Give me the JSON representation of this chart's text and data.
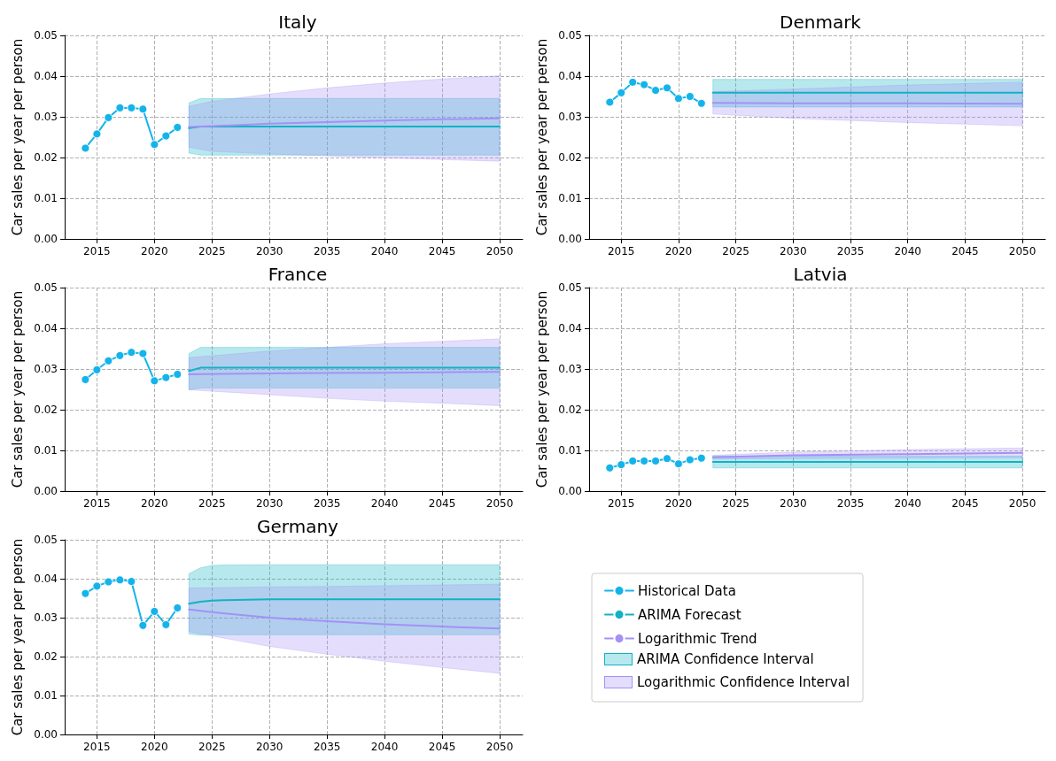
{
  "chart_data": [
    {
      "type": "line",
      "title": "Italy",
      "ylabel": "Car sales per year per person",
      "xlim": [
        2012.2,
        2052
      ],
      "xticks": [
        2015,
        2020,
        2025,
        2030,
        2035,
        2040,
        2045,
        2050
      ],
      "ylim": [
        0,
        0.05
      ],
      "yticks": [
        {
          "value": 0,
          "label": "0.00"
        },
        {
          "value": 0.01,
          "label": "0.01"
        },
        {
          "value": 0.02,
          "label": "0.02"
        },
        {
          "value": 0.03,
          "label": "0.03"
        },
        {
          "value": 0.04,
          "label": "0.04"
        },
        {
          "value": 0.05,
          "label": "0.05"
        }
      ],
      "grid": true,
      "series": [
        {
          "marker": "circle",
          "color": "#14b4eb",
          "x": [
            2014,
            2015,
            2016,
            2017,
            2018,
            2019,
            2020,
            2021,
            2022
          ],
          "values": [
            0.0223,
            0.0258,
            0.0298,
            0.0322,
            0.0322,
            0.0319,
            0.0232,
            0.0253,
            0.0274
          ]
        },
        {
          "marker": "none",
          "color": "#12b2c4",
          "x": [
            2023,
            2024,
            2025,
            2030,
            2035,
            2040,
            2045,
            2050
          ],
          "values": [
            0.0272,
            0.0276,
            0.0276,
            0.0276,
            0.0276,
            0.0276,
            0.0276,
            0.0276
          ],
          "lower": [
            0.0211,
            0.0206,
            0.0206,
            0.0206,
            0.0206,
            0.0206,
            0.0206,
            0.0206
          ],
          "upper": [
            0.0334,
            0.0345,
            0.0345,
            0.0345,
            0.0345,
            0.0345,
            0.0345,
            0.0345
          ]
        },
        {
          "marker": "none",
          "color": "#a591f5",
          "x": [
            2023,
            2025,
            2030,
            2035,
            2040,
            2045,
            2050
          ],
          "values": [
            0.0275,
            0.0277,
            0.0283,
            0.0287,
            0.0291,
            0.0294,
            0.0296
          ],
          "lower": [
            0.0225,
            0.0215,
            0.0209,
            0.0204,
            0.0199,
            0.0195,
            0.0191
          ],
          "upper": [
            0.0326,
            0.0338,
            0.0356,
            0.0371,
            0.0383,
            0.0393,
            0.0401
          ]
        }
      ]
    },
    {
      "type": "line",
      "title": "Denmark",
      "ylabel": "Car sales per year per person",
      "xlim": [
        2012.2,
        2052
      ],
      "xticks": [
        2015,
        2020,
        2025,
        2030,
        2035,
        2040,
        2045,
        2050
      ],
      "ylim": [
        0,
        0.05
      ],
      "yticks": [
        {
          "value": 0,
          "label": "0.00"
        },
        {
          "value": 0.01,
          "label": "0.01"
        },
        {
          "value": 0.02,
          "label": "0.02"
        },
        {
          "value": 0.03,
          "label": "0.03"
        },
        {
          "value": 0.04,
          "label": "0.04"
        },
        {
          "value": 0.05,
          "label": "0.05"
        }
      ],
      "grid": true,
      "series": [
        {
          "marker": "circle",
          "color": "#14b4eb",
          "x": [
            2014,
            2015,
            2016,
            2017,
            2018,
            2019,
            2020,
            2021,
            2022
          ],
          "values": [
            0.0336,
            0.0359,
            0.0385,
            0.0379,
            0.0365,
            0.0371,
            0.0345,
            0.035,
            0.0333
          ]
        },
        {
          "marker": "none",
          "color": "#12b2c4",
          "x": [
            2023,
            2050
          ],
          "values": [
            0.0359,
            0.0359
          ],
          "lower": [
            0.0324,
            0.0324
          ],
          "upper": [
            0.0392,
            0.0392
          ]
        },
        {
          "marker": "none",
          "color": "#a591f5",
          "x": [
            2023,
            2030,
            2040,
            2050
          ],
          "values": [
            0.0334,
            0.0333,
            0.0333,
            0.0332
          ],
          "lower": [
            0.0307,
            0.0296,
            0.0286,
            0.0278
          ],
          "upper": [
            0.0362,
            0.0368,
            0.0378,
            0.0385
          ]
        }
      ]
    },
    {
      "type": "line",
      "title": "France",
      "ylabel": "Car sales per year per person",
      "xlim": [
        2012.2,
        2052
      ],
      "xticks": [
        2015,
        2020,
        2025,
        2030,
        2035,
        2040,
        2045,
        2050
      ],
      "ylim": [
        0,
        0.05
      ],
      "yticks": [
        {
          "value": 0,
          "label": "0.00"
        },
        {
          "value": 0.01,
          "label": "0.01"
        },
        {
          "value": 0.02,
          "label": "0.02"
        },
        {
          "value": 0.03,
          "label": "0.03"
        },
        {
          "value": 0.04,
          "label": "0.04"
        },
        {
          "value": 0.05,
          "label": "0.05"
        }
      ],
      "grid": true,
      "series": [
        {
          "marker": "circle",
          "color": "#14b4eb",
          "x": [
            2014,
            2015,
            2016,
            2017,
            2018,
            2019,
            2020,
            2021,
            2022
          ],
          "values": [
            0.0274,
            0.0298,
            0.032,
            0.0333,
            0.0341,
            0.0338,
            0.0271,
            0.0279,
            0.0287
          ]
        },
        {
          "marker": "none",
          "color": "#12b2c4",
          "x": [
            2023,
            2024,
            2050
          ],
          "values": [
            0.0295,
            0.0303,
            0.0303
          ],
          "lower": [
            0.0249,
            0.0253,
            0.0253
          ],
          "upper": [
            0.0338,
            0.0353,
            0.0353
          ]
        },
        {
          "marker": "none",
          "color": "#a591f5",
          "x": [
            2023,
            2030,
            2035,
            2040,
            2045,
            2050
          ],
          "values": [
            0.0287,
            0.0289,
            0.029,
            0.0291,
            0.0292,
            0.0293
          ],
          "lower": [
            0.0249,
            0.0237,
            0.0228,
            0.0221,
            0.0216,
            0.021
          ],
          "upper": [
            0.0328,
            0.0344,
            0.0353,
            0.0362,
            0.0368,
            0.0374
          ]
        }
      ]
    },
    {
      "type": "line",
      "title": "Latvia",
      "ylabel": "Car sales per year per person",
      "xlim": [
        2012.2,
        2052
      ],
      "xticks": [
        2015,
        2020,
        2025,
        2030,
        2035,
        2040,
        2045,
        2050
      ],
      "ylim": [
        0,
        0.05
      ],
      "yticks": [
        {
          "value": 0,
          "label": "0.00"
        },
        {
          "value": 0.01,
          "label": "0.01"
        },
        {
          "value": 0.02,
          "label": "0.02"
        },
        {
          "value": 0.03,
          "label": "0.03"
        },
        {
          "value": 0.04,
          "label": "0.04"
        },
        {
          "value": 0.05,
          "label": "0.05"
        }
      ],
      "grid": true,
      "series": [
        {
          "marker": "circle",
          "color": "#14b4eb",
          "x": [
            2014,
            2015,
            2016,
            2017,
            2018,
            2019,
            2020,
            2021,
            2022
          ],
          "values": [
            0.0057,
            0.0065,
            0.0074,
            0.0074,
            0.0074,
            0.008,
            0.0067,
            0.0077,
            0.0081
          ]
        },
        {
          "marker": "none",
          "color": "#12b2c4",
          "x": [
            2023,
            2050
          ],
          "values": [
            0.0072,
            0.0072
          ],
          "lower": [
            0.0057,
            0.0057
          ],
          "upper": [
            0.0086,
            0.0086
          ]
        },
        {
          "marker": "none",
          "color": "#a591f5",
          "x": [
            2023,
            2030,
            2040,
            2050
          ],
          "values": [
            0.0083,
            0.0088,
            0.0091,
            0.0094
          ],
          "lower": [
            0.0079,
            0.008,
            0.0081,
            0.0082
          ],
          "upper": [
            0.0088,
            0.0096,
            0.0102,
            0.0106
          ]
        }
      ]
    },
    {
      "type": "line",
      "title": "Germany",
      "ylabel": "Car sales per year per person",
      "xlim": [
        2012.2,
        2052
      ],
      "xticks": [
        2015,
        2020,
        2025,
        2030,
        2035,
        2040,
        2045,
        2050
      ],
      "ylim": [
        0,
        0.05
      ],
      "yticks": [
        {
          "value": 0,
          "label": "0.00"
        },
        {
          "value": 0.01,
          "label": "0.01"
        },
        {
          "value": 0.02,
          "label": "0.02"
        },
        {
          "value": 0.03,
          "label": "0.03"
        },
        {
          "value": 0.04,
          "label": "0.04"
        },
        {
          "value": 0.05,
          "label": "0.05"
        }
      ],
      "grid": true,
      "legend": "right",
      "annotations": [
        "ARIMA Confidence Interval",
        "Logarithmic Confidence Interval"
      ],
      "series": [
        {
          "name": "Historical Data",
          "marker": "circle",
          "color": "#14b4eb",
          "x": [
            2014,
            2015,
            2016,
            2017,
            2018,
            2019,
            2020,
            2021,
            2022
          ],
          "values": [
            0.0362,
            0.0381,
            0.0392,
            0.0397,
            0.0393,
            0.028,
            0.0316,
            0.0282,
            0.0325
          ]
        },
        {
          "name": "ARIMA Forecast",
          "marker": "none",
          "color": "#12b2c4",
          "x": [
            2023,
            2024,
            2025,
            2026,
            2030,
            2050
          ],
          "values": [
            0.0336,
            0.0341,
            0.0344,
            0.0345,
            0.0347,
            0.0347
          ],
          "lower": [
            0.0258,
            0.0255,
            0.0256,
            0.0256,
            0.0256,
            0.0256
          ],
          "upper": [
            0.0413,
            0.0428,
            0.0434,
            0.0435,
            0.0436,
            0.0436
          ]
        },
        {
          "name": "Logarithmic Trend",
          "marker": "none",
          "color": "#a591f5",
          "x": [
            2023,
            2025,
            2030,
            2035,
            2040,
            2045,
            2050
          ],
          "values": [
            0.0321,
            0.0314,
            0.03,
            0.0291,
            0.0283,
            0.0277,
            0.0272
          ],
          "lower": [
            0.0264,
            0.0253,
            0.0226,
            0.0206,
            0.0188,
            0.0172,
            0.0157
          ],
          "upper": [
            0.0376,
            0.0377,
            0.0379,
            0.038,
            0.0382,
            0.0384,
            0.0386
          ]
        }
      ]
    }
  ]
}
